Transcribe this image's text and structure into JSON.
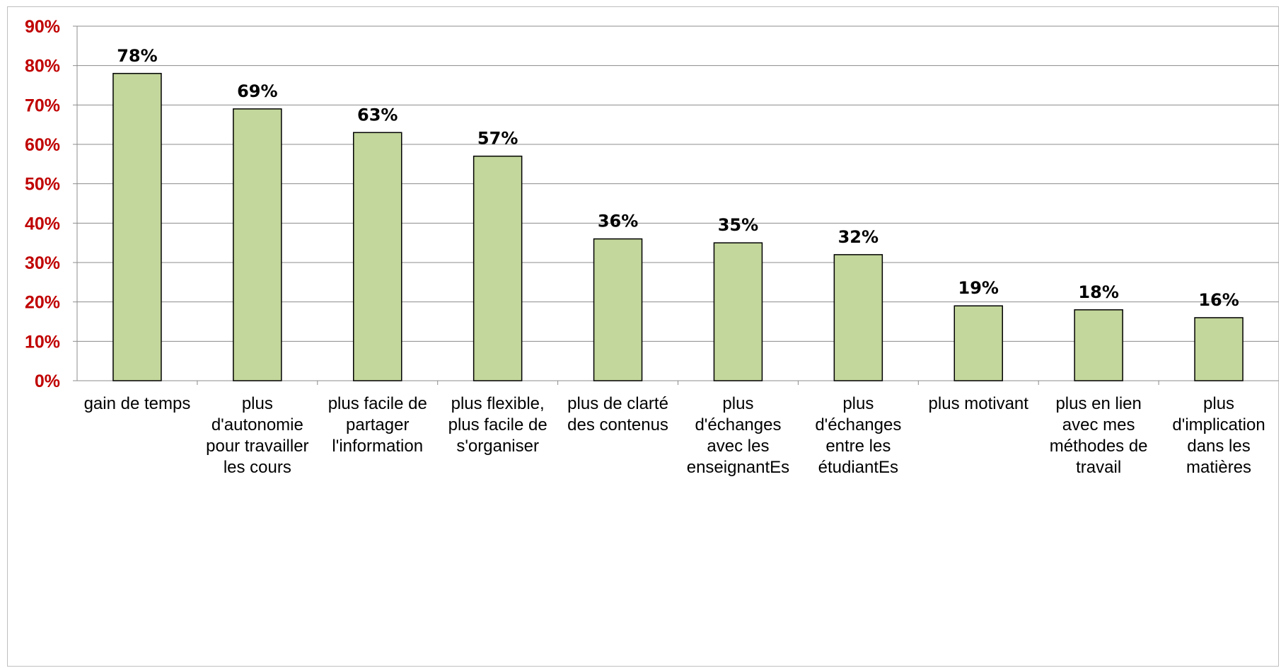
{
  "chart_data": {
    "type": "bar",
    "categories": [
      [
        "gain de temps"
      ],
      [
        "plus",
        "d'autonomie",
        "pour travailler",
        "les cours"
      ],
      [
        "plus facile de",
        "partager",
        "l'information"
      ],
      [
        "plus flexible,",
        "plus facile de",
        "s'organiser"
      ],
      [
        "plus de clarté",
        "des contenus"
      ],
      [
        "plus",
        "d'échanges",
        "avec les",
        "enseignantEs"
      ],
      [
        "plus",
        "d'échanges",
        "entre les",
        "étudiantEs"
      ],
      [
        "plus motivant"
      ],
      [
        "plus en lien",
        "avec mes",
        "méthodes de",
        "travail"
      ],
      [
        "plus",
        "d'implication",
        "dans les",
        "matières"
      ]
    ],
    "values": [
      78,
      69,
      63,
      57,
      36,
      35,
      32,
      19,
      18,
      16
    ],
    "data_labels": [
      "78%",
      "69%",
      "63%",
      "57%",
      "36%",
      "35%",
      "32%",
      "19%",
      "18%",
      "16%"
    ],
    "y_ticks": [
      "0%",
      "10%",
      "20%",
      "30%",
      "40%",
      "50%",
      "60%",
      "70%",
      "80%",
      "90%"
    ],
    "ylim": [
      0,
      90
    ],
    "title": "",
    "xlabel": "",
    "ylabel": "",
    "grid": true,
    "legend": "none",
    "colors": {
      "bar_fill": "#c3d69b",
      "bar_stroke": "#000000",
      "grid": "#8c8c8c",
      "tick_label": "#c00000"
    }
  }
}
